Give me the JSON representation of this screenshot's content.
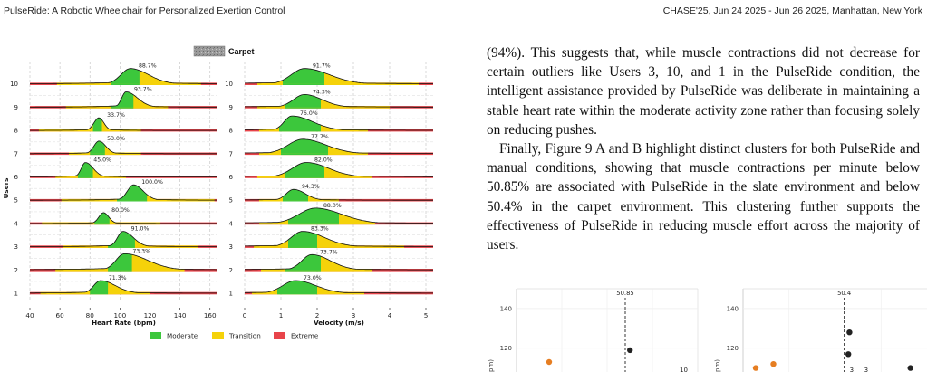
{
  "header": {
    "left": "PulseRide: A Robotic Wheelchair for Personalized Exertion Control",
    "right": "CHASE'25, Jun 24 2025 - Jun 26 2025, Manhattan, New York"
  },
  "body_text": {
    "p1": "(94%). This suggests that, while muscle contractions did not decrease for certain outliers like Users 3, 10, and 1 in the PulseRide condition, the intelligent assistance provided by PulseRide was deliberate in maintaining a stable heart rate within the moderate activity zone rather than focusing solely on reducing pushes.",
    "p2": "Finally, Figure 9 A and B highlight distinct clusters for both PulseRide and manual conditions, showing that muscle contractions per minute below 50.85% are associated with PulseRide in the slate environment and below 50.4% in the carpet environment. This clustering further supports the effectiveness of PulseRide in reducing muscle effort across the majority of users."
  },
  "chart_data": [
    {
      "type": "area",
      "title": "Carpet",
      "xlabel": "Heart Rate (bpm)",
      "ylabel": "Users",
      "xlim": [
        40,
        165
      ],
      "xticks": [
        40,
        60,
        80,
        100,
        120,
        140,
        160
      ],
      "categories": [
        "1",
        "2",
        "3",
        "4",
        "5",
        "6",
        "7",
        "8",
        "9",
        "10"
      ],
      "zone_colors": {
        "Moderate": "#3cc73c",
        "Transition": "#f5d20a",
        "Extreme": "#e8444a"
      },
      "rows": [
        {
          "user": "1",
          "peak": 87,
          "sd": 5.5,
          "skew": 0.8,
          "height": 0.7,
          "mod": [
            80,
            92
          ],
          "trans": [
            47,
            120
          ],
          "label": "71.3%"
        },
        {
          "user": "2",
          "peak": 103,
          "sd": 8,
          "skew": 0.7,
          "height": 0.9,
          "mod": [
            92,
            108
          ],
          "trans": [
            57,
            143
          ],
          "label": "73.3%"
        },
        {
          "user": "3",
          "peak": 102,
          "sd": 4,
          "skew": 0.9,
          "height": 0.85,
          "mod": [
            92,
            110
          ],
          "trans": [
            62,
            152
          ],
          "label": "91.0%"
        },
        {
          "user": "4",
          "peak": 89,
          "sd": 2.5,
          "skew": 1.2,
          "height": 0.6,
          "mod": [
            83,
            93
          ],
          "trans": [
            48,
            127
          ],
          "label": "80.0%"
        },
        {
          "user": "5",
          "peak": 109,
          "sd": 4,
          "skew": 1.0,
          "height": 0.85,
          "mod": [
            98,
            118
          ],
          "trans": [
            61,
            163
          ],
          "label": "100.0%"
        },
        {
          "user": "6",
          "peak": 77,
          "sd": 3,
          "skew": 0.9,
          "height": 0.8,
          "mod": [
            72,
            82
          ],
          "trans": [
            57,
            104
          ],
          "label": "45.0%"
        },
        {
          "user": "7",
          "peak": 86,
          "sd": 3,
          "skew": 1.1,
          "height": 0.7,
          "mod": [
            80,
            90
          ],
          "trans": [
            66,
            114
          ],
          "label": "53.0%"
        },
        {
          "user": "8",
          "peak": 86,
          "sd": 2.5,
          "skew": 1.3,
          "height": 0.7,
          "mod": [
            82,
            88
          ],
          "trans": [
            46,
            114
          ],
          "label": "33.7%"
        },
        {
          "user": "9",
          "peak": 104,
          "sd": 4,
          "skew": 0.7,
          "height": 0.85,
          "mod": [
            94,
            109
          ],
          "trans": [
            64,
            132
          ],
          "label": "93.7%"
        },
        {
          "user": "10",
          "peak": 107,
          "sd": 7,
          "skew": 0.9,
          "height": 0.85,
          "mod": [
            94,
            113
          ],
          "trans": [
            58,
            154
          ],
          "label": "88.7%"
        }
      ]
    },
    {
      "type": "area",
      "title": "",
      "xlabel": "Velocity (m/s)",
      "ylabel": "",
      "xlim": [
        0,
        5.2
      ],
      "xticks": [
        0,
        1,
        2,
        3,
        4,
        5
      ],
      "categories": [
        "1",
        "2",
        "3",
        "4",
        "5",
        "6",
        "7",
        "8",
        "9",
        "10"
      ],
      "rows": [
        {
          "user": "1",
          "peak": 1.4,
          "sd": 0.35,
          "skew": 1.0,
          "height": 0.7,
          "mod": [
            0.9,
            2.0
          ],
          "trans": [
            0.2,
            3.3
          ],
          "label": "73.0%"
        },
        {
          "user": "2",
          "peak": 1.85,
          "sd": 0.3,
          "skew": 0.9,
          "height": 0.85,
          "mod": [
            1.1,
            2.1
          ],
          "trans": [
            0.45,
            3.5
          ],
          "label": "73.7%"
        },
        {
          "user": "3",
          "peak": 1.6,
          "sd": 0.35,
          "skew": 0.9,
          "height": 0.85,
          "mod": [
            1.2,
            2.0
          ],
          "trans": [
            0.25,
            4.4
          ],
          "label": "83.3%"
        },
        {
          "user": "4",
          "peak": 1.95,
          "sd": 0.45,
          "skew": 1.0,
          "height": 0.85,
          "mod": [
            1.2,
            2.6
          ],
          "trans": [
            0.4,
            3.6
          ],
          "label": "88.0%"
        },
        {
          "user": "5",
          "peak": 1.35,
          "sd": 0.2,
          "skew": 1.0,
          "height": 0.6,
          "mod": [
            1.05,
            1.75
          ],
          "trans": [
            0.4,
            2.6
          ],
          "label": "94.3%"
        },
        {
          "user": "6",
          "peak": 1.7,
          "sd": 0.38,
          "skew": 1.0,
          "height": 0.8,
          "mod": [
            1.1,
            2.2
          ],
          "trans": [
            0.35,
            3.5
          ],
          "label": "82.0%"
        },
        {
          "user": "7",
          "peak": 1.6,
          "sd": 0.4,
          "skew": 1.0,
          "height": 0.8,
          "mod": [
            1.0,
            2.3
          ],
          "trans": [
            0.4,
            3.4
          ],
          "label": "77.7%"
        },
        {
          "user": "8",
          "peak": 1.3,
          "sd": 0.3,
          "skew": 0.7,
          "height": 0.8,
          "mod": [
            0.95,
            2.1
          ],
          "trans": [
            0.4,
            3.4
          ],
          "label": "76.0%"
        },
        {
          "user": "9",
          "peak": 1.65,
          "sd": 0.3,
          "skew": 1.0,
          "height": 0.7,
          "mod": [
            1.1,
            2.1
          ],
          "trans": [
            0.35,
            4.0
          ],
          "label": "74.3%"
        },
        {
          "user": "10",
          "peak": 1.65,
          "sd": 0.4,
          "skew": 0.9,
          "height": 0.85,
          "mod": [
            1.05,
            2.2
          ],
          "trans": [
            0.35,
            4.8
          ],
          "label": "91.7%"
        }
      ]
    },
    {
      "type": "scatter",
      "ylim": [
        108,
        150
      ],
      "yticks": [
        120,
        140
      ],
      "threshold": {
        "value": 0,
        "label": "50.85"
      },
      "points": [
        {
          "x": 0.26,
          "y": 119,
          "color": "#222222"
        },
        {
          "x": 0.12,
          "y": 113,
          "color": "#e67e22"
        }
      ],
      "point_labels": [
        "10"
      ]
    },
    {
      "type": "scatter",
      "ylim": [
        108,
        150
      ],
      "yticks": [
        120,
        140
      ],
      "threshold": {
        "value": 0,
        "label": "50.4"
      },
      "points": [
        {
          "x": 0.25,
          "y": 128,
          "color": "#222222"
        },
        {
          "x": 0.2,
          "y": 117,
          "color": "#222222"
        },
        {
          "x": 0.05,
          "y": 110,
          "color": "#e67e22"
        },
        {
          "x": 0.12,
          "y": 112,
          "color": "#e67e22"
        },
        {
          "x": 0.8,
          "y": 110,
          "color": "#222222"
        }
      ],
      "point_labels": [
        "3",
        "3"
      ]
    }
  ],
  "legend": {
    "items": [
      {
        "label": "Moderate",
        "color": "#3cc73c"
      },
      {
        "label": "Transition",
        "color": "#f5d20a"
      },
      {
        "label": "Extreme",
        "color": "#e8444a"
      }
    ]
  },
  "tag_icon": "texture-swatch-icon"
}
